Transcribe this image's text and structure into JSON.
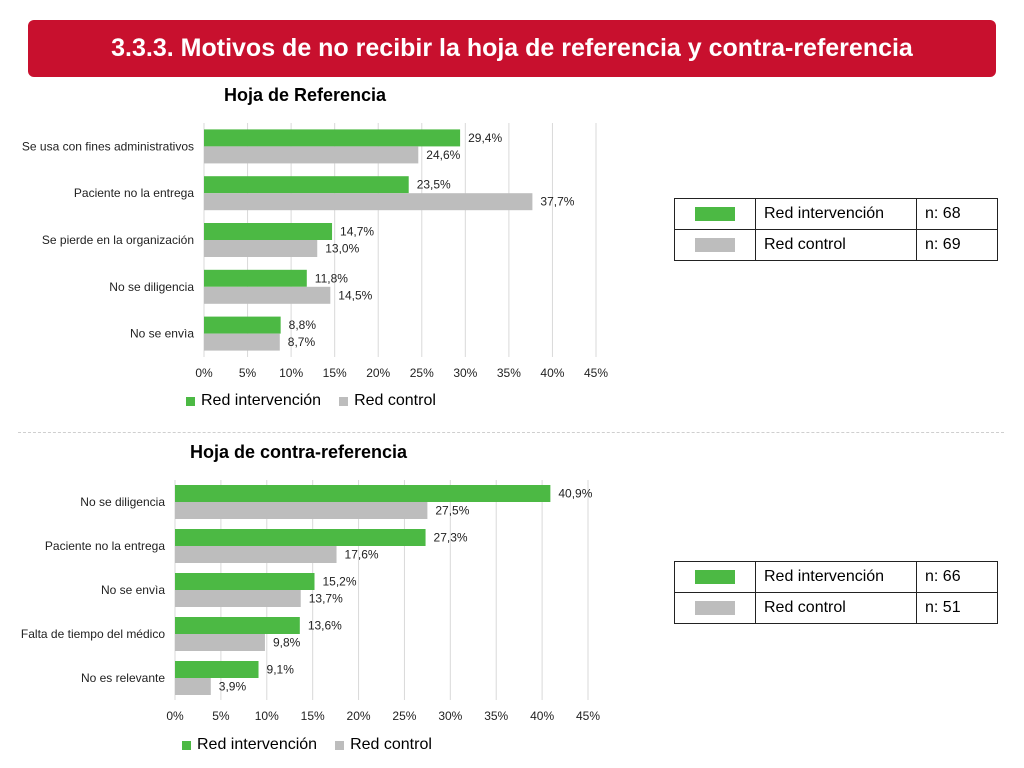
{
  "header": {
    "title": "3.3.3. Motivos de no recibir la hoja de referencia y contra-referencia"
  },
  "colors": {
    "banner": "#c8102e",
    "intervention": "#4cb944",
    "control": "#bdbdbd"
  },
  "chart_data": [
    {
      "type": "bar",
      "orientation": "horizontal",
      "title": "Hoja de Referencia",
      "categories": [
        "Se usa con fines administrativos",
        "Paciente no la entrega",
        "Se pierde en la organización",
        "No se diligencia",
        "No se envìa"
      ],
      "series": [
        {
          "name": "Red intervención",
          "values": [
            29.4,
            23.5,
            14.7,
            11.8,
            8.8
          ],
          "labels": [
            "29,4%",
            "23,5%",
            "14,7%",
            "11,8%",
            "8,8%"
          ]
        },
        {
          "name": "Red control",
          "values": [
            24.6,
            37.7,
            13.0,
            14.5,
            8.7
          ],
          "labels": [
            "24,6%",
            "37,7%",
            "13,0%",
            "14,5%",
            "8,7%"
          ]
        }
      ],
      "xlim": [
        0,
        45
      ],
      "ticks": [
        "0%",
        "5%",
        "10%",
        "15%",
        "20%",
        "25%",
        "30%",
        "35%",
        "40%",
        "45%"
      ],
      "grid": true,
      "legend": "bottom"
    },
    {
      "type": "bar",
      "orientation": "horizontal",
      "title": "Hoja de contra-referencia",
      "categories": [
        "No se diligencia",
        "Paciente no la entrega",
        "No se envìa",
        "Falta de tiempo del médico",
        "No es relevante"
      ],
      "series": [
        {
          "name": "Red intervención",
          "values": [
            40.9,
            27.3,
            15.2,
            13.6,
            9.1
          ],
          "labels": [
            "40,9%",
            "27,3%",
            "15,2%",
            "13,6%",
            "9,1%"
          ]
        },
        {
          "name": "Red control",
          "values": [
            27.5,
            17.6,
            13.7,
            9.8,
            3.9
          ],
          "labels": [
            "27,5%",
            "17,6%",
            "13,7%",
            "9,8%",
            "3,9%"
          ]
        }
      ],
      "xlim": [
        0,
        45
      ],
      "ticks": [
        "0%",
        "5%",
        "10%",
        "15%",
        "20%",
        "25%",
        "30%",
        "35%",
        "40%",
        "45%"
      ],
      "grid": true,
      "legend": "bottom"
    }
  ],
  "legends": [
    {
      "intervention": "Red intervención",
      "control": "Red control"
    },
    {
      "intervention": "Red intervención",
      "control": "Red control"
    }
  ],
  "tables": [
    {
      "rows": [
        {
          "label": "Red intervención",
          "n": "n: 68"
        },
        {
          "label": "Red control",
          "n": "n: 69"
        }
      ]
    },
    {
      "rows": [
        {
          "label": "Red intervención",
          "n": "n: 66"
        },
        {
          "label": "Red control",
          "n": "n: 51"
        }
      ]
    }
  ]
}
